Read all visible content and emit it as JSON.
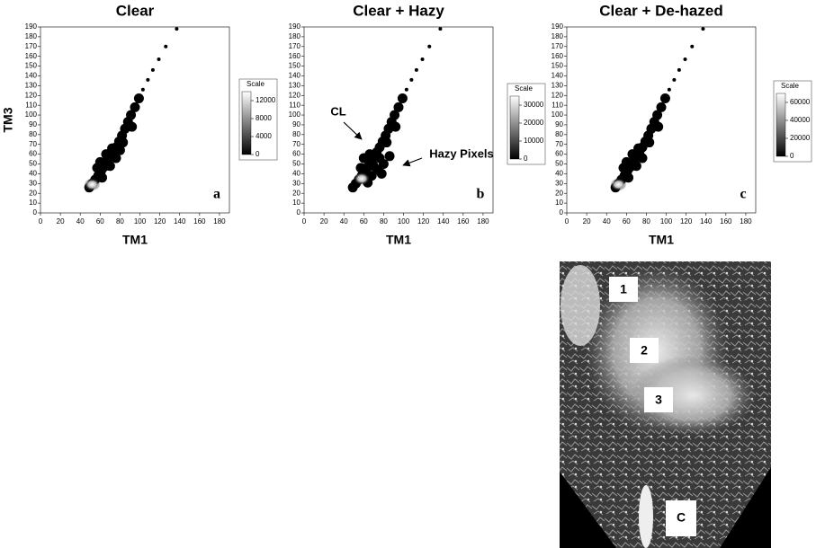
{
  "chart_data": [
    {
      "type": "density",
      "title": "Clear",
      "xlabel": "TM1",
      "ylabel": "TM3",
      "panel_label": "a",
      "xlim": [
        0,
        190
      ],
      "ylim": [
        0,
        190
      ],
      "xticks": [
        0,
        20,
        40,
        60,
        80,
        100,
        120,
        140,
        160,
        180
      ],
      "yticks": [
        0,
        10,
        20,
        30,
        40,
        50,
        60,
        70,
        80,
        90,
        100,
        110,
        120,
        130,
        140,
        150,
        160,
        170,
        180,
        190
      ],
      "x": [
        49,
        52,
        55,
        58,
        61,
        64,
        67,
        70,
        73,
        76,
        79,
        82,
        85,
        88,
        91,
        95,
        99,
        103,
        108,
        113,
        119,
        126,
        137,
        62,
        70,
        57,
        76,
        83,
        66,
        92,
        60,
        72,
        80
      ],
      "y": [
        26,
        30,
        34,
        38,
        43,
        47,
        52,
        57,
        62,
        67,
        73,
        79,
        86,
        93,
        100,
        108,
        117,
        126,
        136,
        146,
        157,
        170,
        188,
        36,
        48,
        46,
        56,
        72,
        60,
        88,
        52,
        66,
        64
      ],
      "core": [
        52,
        29
      ],
      "color": "#000000",
      "scale": {
        "title": "Scale",
        "lim": [
          0,
          14000
        ],
        "ticks": [
          0,
          4000,
          8000,
          12000
        ]
      }
    },
    {
      "type": "density",
      "title": "Clear + Hazy",
      "xlabel": "TM1",
      "panel_label": "b",
      "xlim": [
        0,
        190
      ],
      "ylim": [
        0,
        190
      ],
      "xticks": [
        0,
        20,
        40,
        60,
        80,
        100,
        120,
        140,
        160,
        180
      ],
      "yticks": [
        0,
        10,
        20,
        30,
        40,
        50,
        60,
        70,
        80,
        90,
        100,
        110,
        120,
        130,
        140,
        150,
        160,
        170,
        180,
        190
      ],
      "x": [
        49,
        52,
        55,
        58,
        61,
        64,
        67,
        70,
        73,
        76,
        79,
        82,
        85,
        88,
        91,
        95,
        99,
        103,
        108,
        113,
        119,
        126,
        137,
        62,
        70,
        57,
        76,
        83,
        66,
        92,
        68,
        74,
        80,
        86,
        64,
        60,
        78
      ],
      "y": [
        26,
        30,
        34,
        38,
        43,
        47,
        52,
        57,
        62,
        67,
        73,
        79,
        86,
        93,
        100,
        108,
        117,
        126,
        136,
        146,
        157,
        170,
        188,
        36,
        48,
        46,
        56,
        72,
        60,
        88,
        38,
        44,
        50,
        58,
        31,
        56,
        40
      ],
      "core": [
        58,
        35
      ],
      "color": "#000000",
      "annotations": [
        "CL",
        "Hazy Pixels"
      ],
      "scale": {
        "title": "Scale",
        "lim": [
          0,
          35000
        ],
        "ticks": [
          0,
          10000,
          20000,
          30000
        ]
      }
    },
    {
      "type": "density",
      "title": "Clear + De-hazed",
      "xlabel": "TM1",
      "panel_label": "c",
      "xlim": [
        0,
        190
      ],
      "ylim": [
        0,
        190
      ],
      "xticks": [
        0,
        20,
        40,
        60,
        80,
        100,
        120,
        140,
        160,
        180
      ],
      "yticks": [
        0,
        10,
        20,
        30,
        40,
        50,
        60,
        70,
        80,
        90,
        100,
        110,
        120,
        130,
        140,
        150,
        160,
        170,
        180,
        190
      ],
      "x": [
        49,
        52,
        55,
        58,
        61,
        64,
        67,
        70,
        73,
        76,
        79,
        82,
        85,
        88,
        91,
        95,
        99,
        103,
        108,
        113,
        119,
        126,
        137,
        62,
        70,
        57,
        76,
        83,
        66,
        92,
        60,
        72
      ],
      "y": [
        26,
        30,
        34,
        38,
        43,
        47,
        52,
        57,
        62,
        67,
        73,
        79,
        86,
        93,
        100,
        108,
        117,
        126,
        136,
        146,
        157,
        170,
        188,
        36,
        48,
        46,
        56,
        72,
        60,
        88,
        52,
        66
      ],
      "core": [
        52,
        29
      ],
      "color": "#000000",
      "scale": {
        "title": "Scale",
        "lim": [
          0,
          70000
        ],
        "ticks": [
          0,
          20000,
          40000,
          60000
        ]
      }
    }
  ],
  "image": {
    "labels": [
      "1",
      "2",
      "3",
      "C"
    ]
  }
}
